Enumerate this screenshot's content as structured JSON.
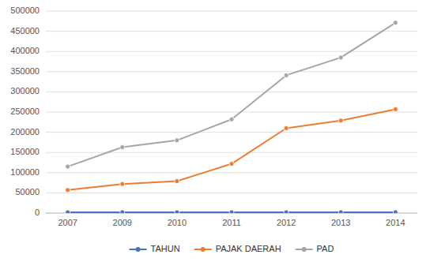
{
  "chart_data": {
    "type": "line",
    "categories": [
      "2007",
      "2009",
      "2010",
      "2011",
      "2012",
      "2013",
      "2014"
    ],
    "series": [
      {
        "name": "TAHUN",
        "color": "#4472C4",
        "values": [
          2007,
          2009,
          2010,
          2011,
          2012,
          2013,
          2014
        ]
      },
      {
        "name": "PAJAK DAERAH",
        "color": "#ED7D31",
        "values": [
          57000,
          72000,
          79000,
          122000,
          210000,
          229000,
          257000
        ]
      },
      {
        "name": "PAD",
        "color": "#A5A5A5",
        "values": [
          115000,
          163000,
          180000,
          232000,
          341000,
          385000,
          471000
        ]
      }
    ],
    "ylim": [
      0,
      500000
    ],
    "yticks": [
      0,
      50000,
      100000,
      150000,
      200000,
      250000,
      300000,
      350000,
      400000,
      450000,
      500000
    ],
    "grid": true,
    "legend": "bottom",
    "marker": "circle"
  }
}
